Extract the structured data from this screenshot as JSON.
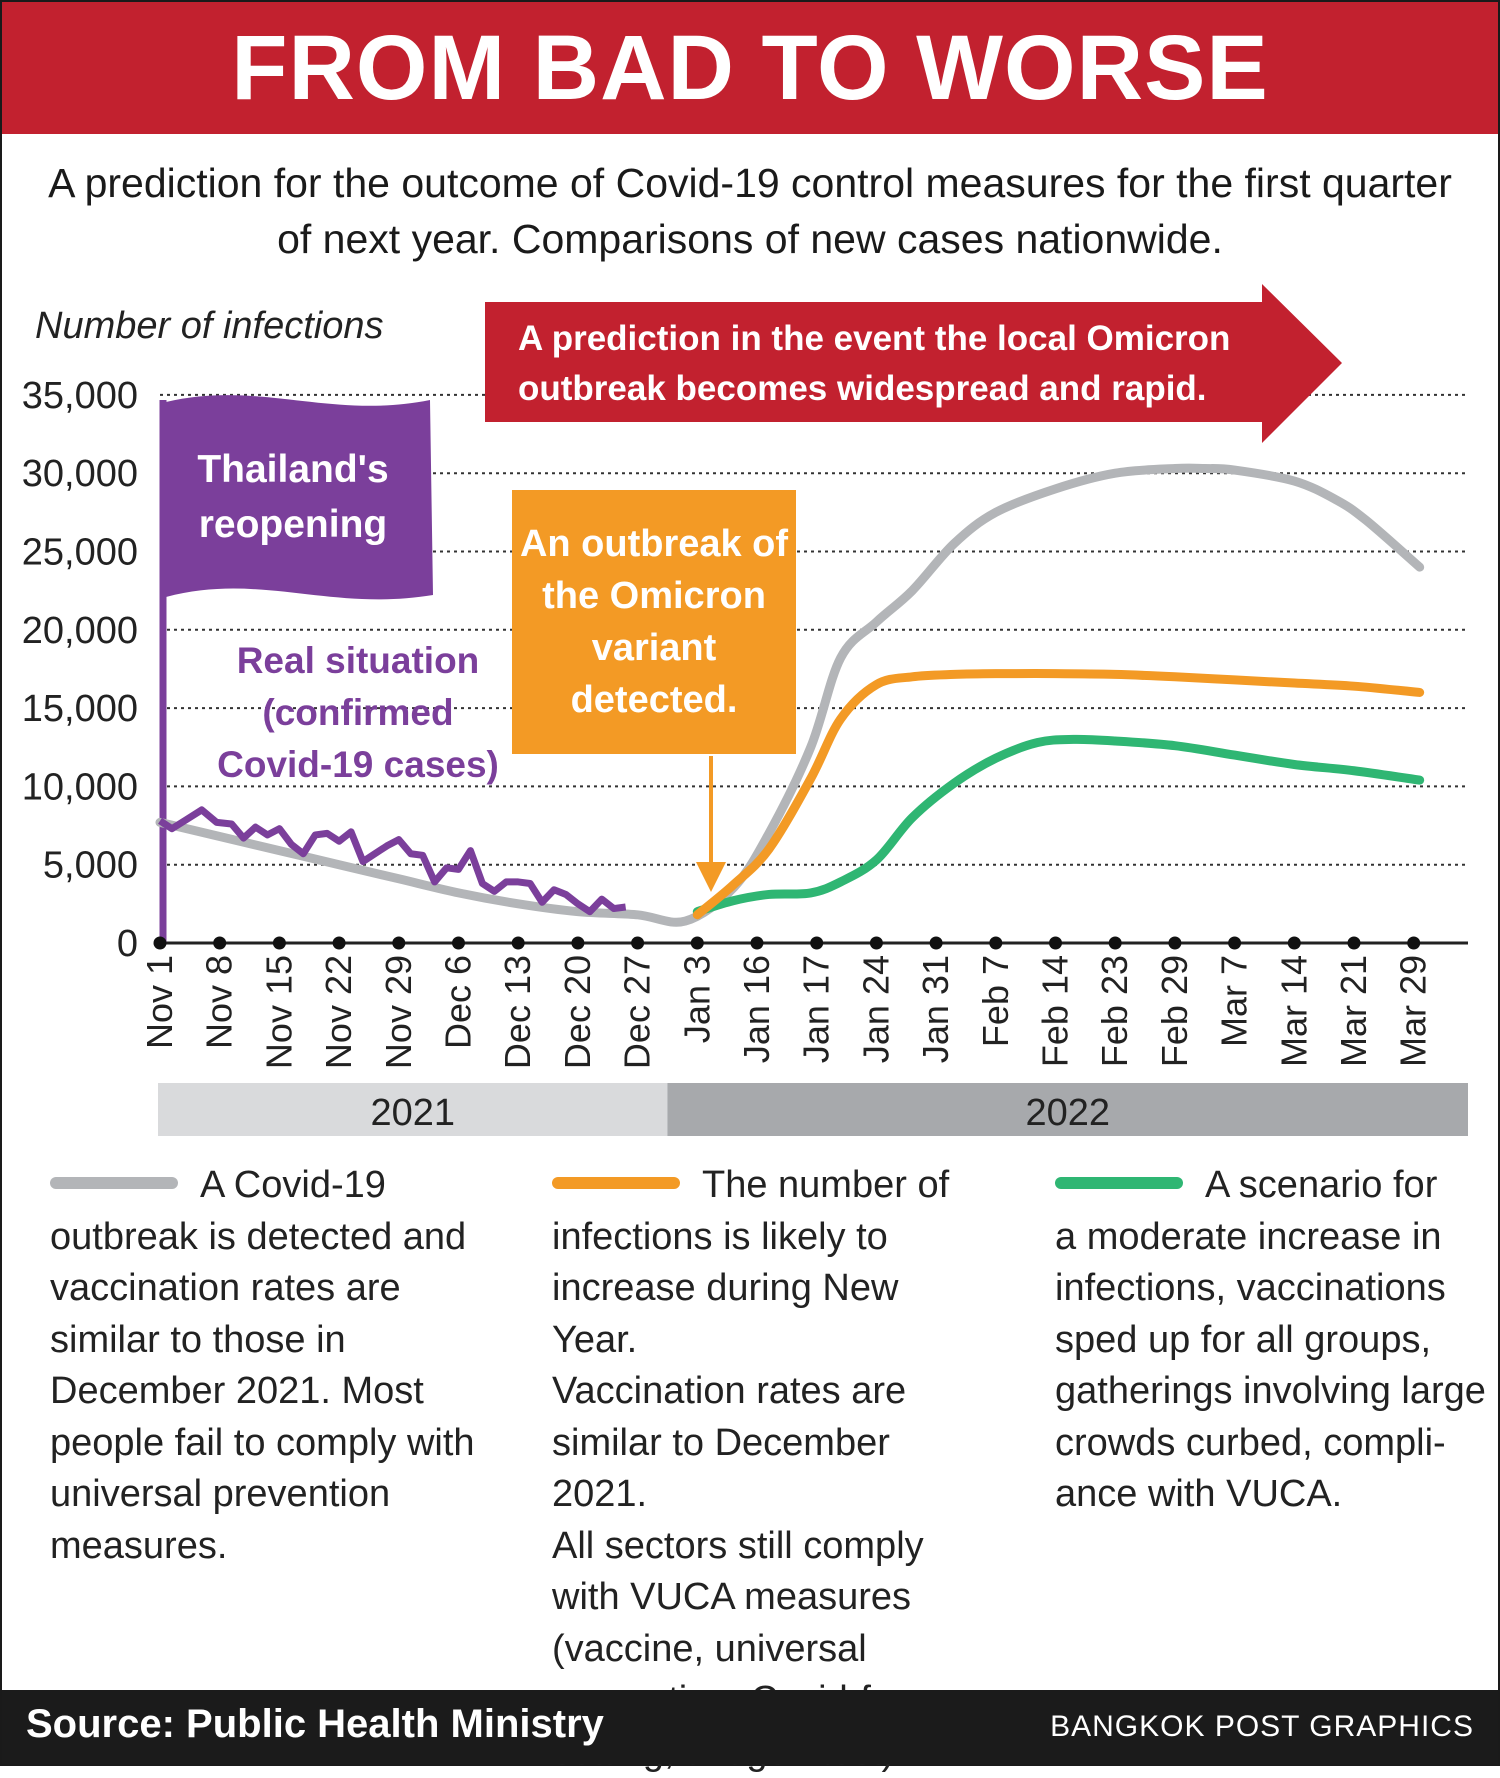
{
  "header": {
    "title": "FROM BAD TO WORSE"
  },
  "subtitle": "A prediction for the outcome of Covid-19 control measures for the first quarter of next year. Comparisons of new cases nationwide.",
  "colors": {
    "header_red": "#c2212f",
    "grey_series": "#b3b5b8",
    "orange_series": "#f39a25",
    "green_series": "#2fb673",
    "purple_real": "#7b3f9b",
    "year_2021_bar": "#d9dadc",
    "year_2022_bar": "#a7a9ac"
  },
  "chart_data": {
    "type": "line",
    "ylabel": "Number of infections",
    "ylim": [
      0,
      35000
    ],
    "yticks": [
      "0",
      "5,000",
      "10,000",
      "15,000",
      "20,000",
      "25,000",
      "30,000",
      "35,000"
    ],
    "grid": "dotted horizontal",
    "categories": [
      "Nov 1",
      "Nov 8",
      "Nov 15",
      "Nov 22",
      "Nov 29",
      "Dec 6",
      "Dec 13",
      "Dec 20",
      "Dec 27",
      "Jan 3",
      "Jan 16",
      "Jan 17",
      "Jan 24",
      "Jan 31",
      "Feb 7",
      "Feb 14",
      "Feb 23",
      "Feb 29",
      "Mar 7",
      "Mar 14",
      "Mar 21",
      "Mar 29"
    ],
    "years": [
      {
        "label": "2021",
        "from": "Nov 1",
        "to": "Dec 27"
      },
      {
        "label": "2022",
        "from": "Jan 3",
        "to": "Mar 29"
      }
    ],
    "series": [
      {
        "key": "grey",
        "x": [
          0,
          1,
          2,
          3,
          4,
          5,
          6,
          7,
          8,
          8.8,
          9.6,
          10.2,
          10.9,
          11.4,
          12.0,
          12.6,
          13.3,
          14,
          15,
          16,
          17,
          17.5,
          18,
          19,
          19.7,
          20.2,
          21.1
        ],
        "values": [
          7700,
          6800,
          5900,
          5000,
          4100,
          3200,
          2500,
          2000,
          1800,
          1400,
          3500,
          7000,
          12500,
          18200,
          20500,
          22500,
          25500,
          27500,
          29000,
          30000,
          30300,
          30300,
          30200,
          29500,
          28300,
          27000,
          24000
        ]
      },
      {
        "key": "orange",
        "x": [
          9,
          9.6,
          10.2,
          10.9,
          11.4,
          12.0,
          12.6,
          13.3,
          14,
          15,
          16,
          17,
          18,
          19,
          20,
          21.1
        ],
        "values": [
          1800,
          3700,
          6000,
          10500,
          14300,
          16500,
          17000,
          17150,
          17200,
          17200,
          17150,
          17000,
          16800,
          16600,
          16400,
          16000
        ]
      },
      {
        "key": "green",
        "x": [
          9,
          9.6,
          10.2,
          10.9,
          11.4,
          12.0,
          12.6,
          13.3,
          14,
          14.7,
          15.3,
          16,
          17,
          18,
          19,
          20,
          21.1
        ],
        "values": [
          2000,
          2700,
          3100,
          3200,
          3900,
          5300,
          8000,
          10200,
          11800,
          12800,
          13000,
          12900,
          12600,
          12000,
          11400,
          11000,
          10400
        ]
      },
      {
        "key": "real",
        "x": [
          0,
          0.2,
          0.45,
          0.7,
          0.95,
          1.2,
          1.4,
          1.6,
          1.8,
          2.0,
          2.2,
          2.4,
          2.6,
          2.8,
          3.0,
          3.2,
          3.4,
          3.6,
          3.8,
          4.0,
          4.2,
          4.4,
          4.6,
          4.8,
          5.0,
          5.2,
          5.4,
          5.6,
          5.8,
          6.0,
          6.2,
          6.4,
          6.6,
          6.8,
          7.0,
          7.2,
          7.4,
          7.6,
          7.8
        ],
        "values": [
          7800,
          7300,
          7900,
          8500,
          7700,
          7600,
          6700,
          7400,
          6900,
          7300,
          6300,
          5700,
          6900,
          7000,
          6500,
          7100,
          5200,
          5700,
          6200,
          6600,
          5700,
          5600,
          3900,
          4800,
          4700,
          5900,
          3800,
          3300,
          3900,
          3900,
          3800,
          2600,
          3400,
          3100,
          2500,
          2000,
          2800,
          2200,
          2300
        ]
      }
    ],
    "annotations": {
      "flag": "Thailand's reopening",
      "real_label_lines": [
        "Real situation",
        "(confirmed",
        "Covid-19 cases)"
      ],
      "omicron_box_lines": [
        "An outbreak of",
        "the Omicron",
        "variant",
        "detected."
      ],
      "arrow_banner_lines": [
        "A prediction in the event the local Omicron",
        "outbreak becomes widespread and rapid."
      ]
    }
  },
  "legend": [
    {
      "key": "grey",
      "first": "A Covid-19",
      "lines": [
        "outbreak is detected and",
        "vaccination rates are",
        "similar to those in",
        "December 2021. Most",
        "people fail to comply with",
        "universal prevention",
        "measures."
      ]
    },
    {
      "key": "orange",
      "first": "The number of",
      "lines": [
        "infections is likely to",
        "increase during New Year.",
        "Vaccination rates are",
        "similar to December 2021.",
        "All sectors still comply",
        "with VUCA measures",
        "(vaccine, universal",
        "prevention, Covid-free",
        "setting, antigen test)."
      ]
    },
    {
      "key": "green",
      "first": "A scenario for",
      "lines": [
        "a moderate increase in",
        "infections, vaccinations",
        "sped up for all groups,",
        "gatherings involving large",
        "crowds curbed, compli-",
        "ance with VUCA."
      ]
    }
  ],
  "footer": {
    "source": "Source: Public Health Ministry",
    "credit": "BANGKOK POST GRAPHICS"
  }
}
